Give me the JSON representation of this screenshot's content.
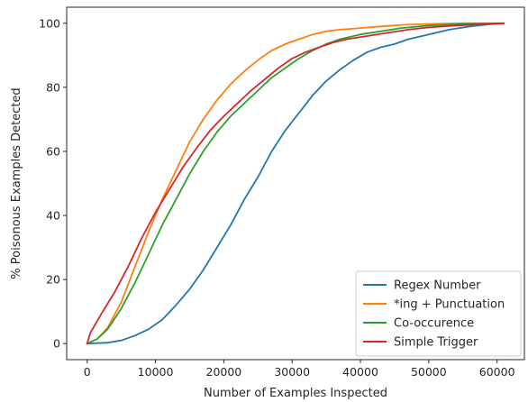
{
  "chart_data": {
    "type": "line",
    "title": "",
    "xlabel": "Number of Examples Inspected",
    "ylabel": "% Poisonous Examples Detected",
    "xlim": [
      -3000,
      64000
    ],
    "ylim": [
      -5,
      105
    ],
    "xticks": [
      0,
      10000,
      20000,
      30000,
      40000,
      50000,
      60000
    ],
    "xtick_labels": [
      "0",
      "10000",
      "20000",
      "30000",
      "40000",
      "50000",
      "60000"
    ],
    "yticks": [
      0,
      20,
      40,
      60,
      80,
      100
    ],
    "ytick_labels": [
      "0",
      "20",
      "40",
      "60",
      "80",
      "100"
    ],
    "grid": false,
    "legend_position": "lower-right",
    "series": [
      {
        "name": "Regex Number",
        "color": "#1f77b4",
        "x": [
          0,
          3000,
          5000,
          7000,
          9000,
          11000,
          13000,
          15000,
          17000,
          19000,
          21000,
          23000,
          25000,
          27000,
          29000,
          31000,
          33000,
          35000,
          37000,
          39000,
          41000,
          43000,
          45000,
          47000,
          50000,
          53000,
          56000,
          59000,
          61000
        ],
        "y": [
          0,
          0.3,
          1,
          2.5,
          4.5,
          7.5,
          12,
          17,
          23,
          30,
          37,
          45,
          52,
          60,
          66.5,
          72,
          77.5,
          82,
          85.5,
          88.5,
          91,
          92.5,
          93.5,
          95,
          96.5,
          98,
          99,
          99.7,
          100
        ]
      },
      {
        "name": "*ing + Punctuation",
        "color": "#ff7f0e",
        "x": [
          0,
          1500,
          3000,
          5000,
          7000,
          9000,
          11000,
          13000,
          15000,
          17000,
          19000,
          21000,
          23000,
          25000,
          27000,
          29000,
          31000,
          33000,
          35000,
          37000,
          40000,
          43000,
          46000,
          50000,
          55000,
          61000
        ],
        "y": [
          0,
          1.5,
          5,
          13,
          24,
          35,
          45,
          54,
          63,
          70,
          76,
          81,
          85,
          88.5,
          91.5,
          93.5,
          95,
          96.5,
          97.5,
          98,
          98.5,
          99,
          99.5,
          99.8,
          100,
          100
        ]
      },
      {
        "name": "Co-occurence",
        "color": "#2ca02c",
        "x": [
          0,
          1500,
          3000,
          5000,
          7000,
          9000,
          11000,
          13000,
          15000,
          17000,
          19000,
          21000,
          23000,
          25000,
          27000,
          29000,
          31000,
          33000,
          35000,
          37000,
          40000,
          43000,
          46000,
          50000,
          55000,
          61000
        ],
        "y": [
          0,
          1.5,
          4.5,
          11,
          19,
          28,
          37,
          45,
          53,
          60,
          66,
          71,
          75,
          79,
          83,
          86,
          89,
          91.5,
          93.5,
          95,
          96.5,
          97.5,
          98.5,
          99.3,
          99.8,
          100
        ]
      },
      {
        "name": "Simple Trigger",
        "color": "#d62728",
        "x": [
          0,
          500,
          2000,
          4000,
          6000,
          8000,
          10000,
          12000,
          14000,
          16000,
          18000,
          20000,
          22000,
          24000,
          26000,
          28000,
          30000,
          32000,
          34000,
          36000,
          38000,
          41000,
          44000,
          47000,
          50000,
          54000,
          58000,
          61000
        ],
        "y": [
          0,
          3.5,
          9,
          16,
          24,
          33,
          41,
          48,
          55,
          61,
          66.5,
          71,
          75,
          79,
          82.5,
          86,
          89,
          91,
          92.5,
          94,
          95,
          96,
          97,
          98,
          98.7,
          99.3,
          99.7,
          100
        ]
      }
    ]
  }
}
